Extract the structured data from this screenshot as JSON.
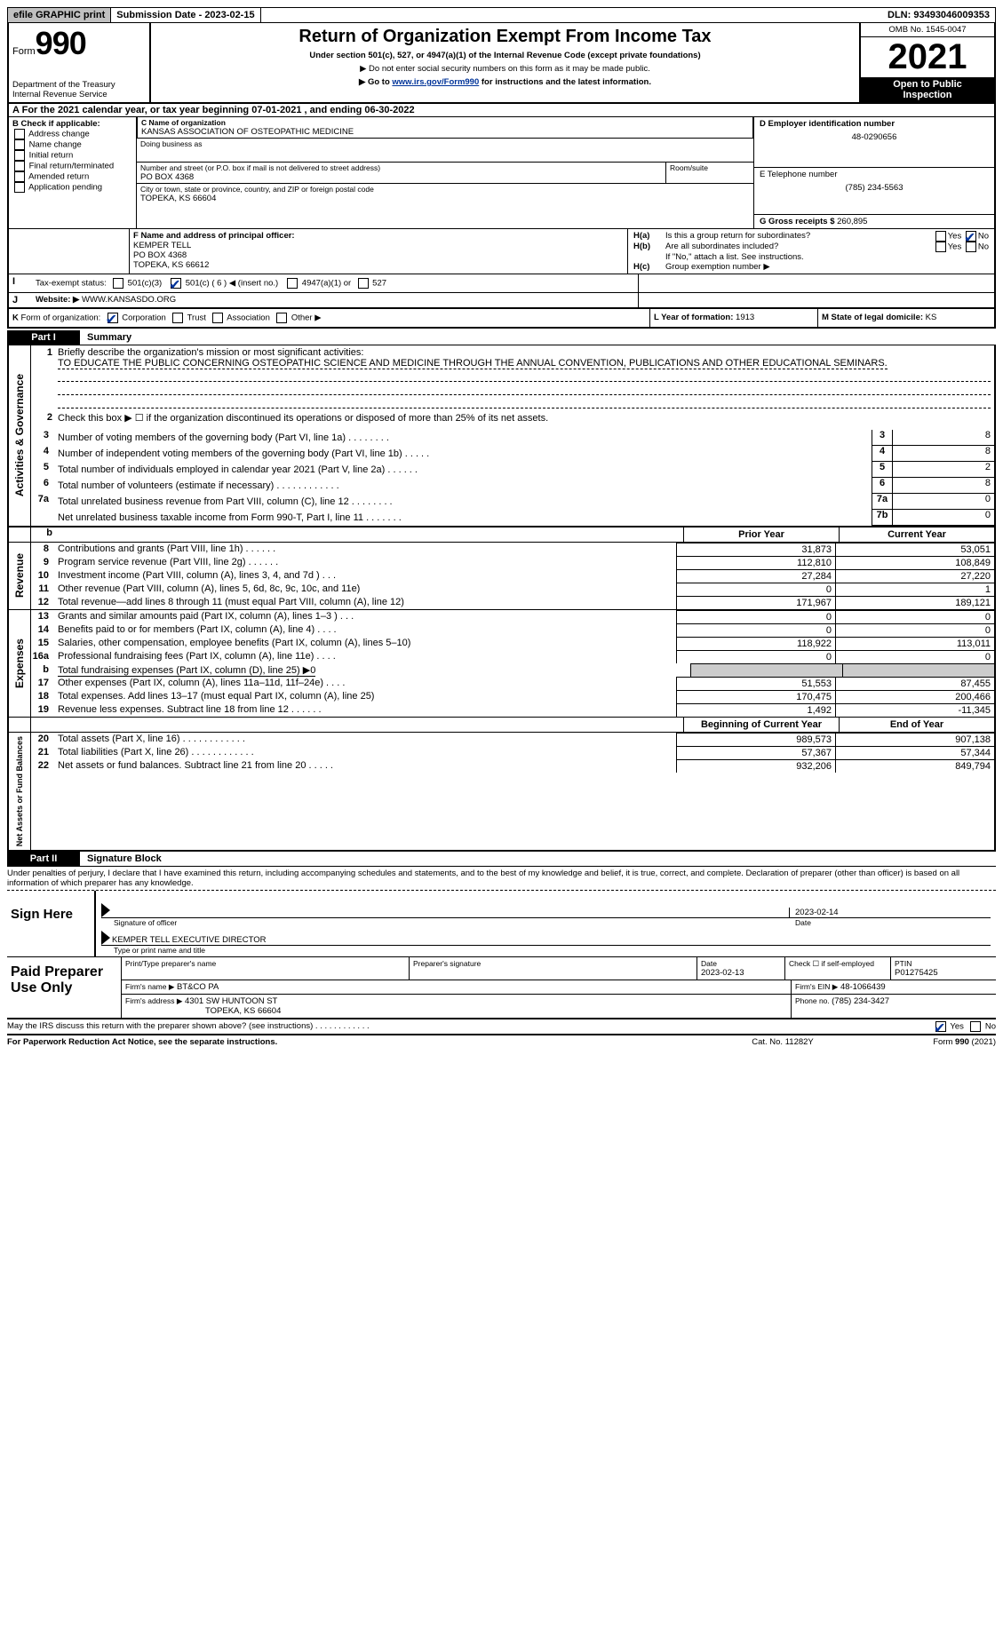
{
  "topbar": {
    "efile_label": "efile GRAPHIC print",
    "submission_label": "Submission Date - 2023-02-15",
    "dln_label": "DLN: 93493046009353"
  },
  "header": {
    "form_label": "Form",
    "form_number": "990",
    "title": "Return of Organization Exempt From Income Tax",
    "subtitle": "Under section 501(c), 527, or 4947(a)(1) of the Internal Revenue Code (except private foundations)",
    "ssn_note": "▶ Do not enter social security numbers on this form as it may be made public.",
    "goto_prefix": "▶ Go to ",
    "goto_link": "www.irs.gov/Form990",
    "goto_suffix": " for instructions and the latest information.",
    "dept": "Department of the Treasury",
    "irs": "Internal Revenue Service",
    "omb": "OMB No. 1545-0047",
    "year": "2021",
    "open_inspection_l1": "Open to Public",
    "open_inspection_l2": "Inspection"
  },
  "section_a": {
    "line": "For the 2021 calendar year, or tax year beginning 07-01-2021    , and ending 06-30-2022",
    "prefix": "A"
  },
  "section_b": {
    "title": "B Check if applicable:",
    "items": [
      "Address change",
      "Name change",
      "Initial return",
      "Final return/terminated",
      "Amended return",
      "Application pending"
    ]
  },
  "section_c": {
    "name_label": "C Name of organization",
    "name": "KANSAS ASSOCIATION OF OSTEOPATHIC MEDICINE",
    "dba_label": "Doing business as",
    "street_label": "Number and street (or P.O. box if mail is not delivered to street address)",
    "room_label": "Room/suite",
    "street": "PO BOX 4368",
    "city_label": "City or town, state or province, country, and ZIP or foreign postal code",
    "city": "TOPEKA, KS  66604"
  },
  "section_d": {
    "label": "D Employer identification number",
    "value": "48-0290656"
  },
  "section_e": {
    "label": "E Telephone number",
    "value": "(785) 234-5563"
  },
  "section_g": {
    "label": "G Gross receipts $ ",
    "value": "260,895"
  },
  "section_f": {
    "label": "F  Name and address of principal officer:",
    "name": "KEMPER TELL",
    "street": "PO BOX 4368",
    "city": "TOPEKA, KS  66612"
  },
  "section_h": {
    "ha_label": "Is this a group return for subordinates?",
    "ha_prefix": "H(a)",
    "hb_label": "Are all subordinates included?",
    "hb_prefix": "H(b)",
    "hb_note": "If \"No,\" attach a list. See instructions.",
    "hc_prefix": "H(c)",
    "hc_label": "Group exemption number ▶",
    "yes": "Yes",
    "no": "No"
  },
  "section_i": {
    "prefix": "I",
    "label": "Tax-exempt status:",
    "opt1": "501(c)(3)",
    "opt2": "501(c) ( 6 ) ◀ (insert no.)",
    "opt3": "4947(a)(1) or",
    "opt4": "527"
  },
  "section_j": {
    "prefix": "J",
    "label": "Website: ▶",
    "value": "WWW.KANSASDO.ORG"
  },
  "section_k": {
    "prefix": "K",
    "label": "Form of organization:",
    "opts": [
      "Corporation",
      "Trust",
      "Association",
      "Other ▶"
    ]
  },
  "section_l": {
    "label": "L Year of formation: ",
    "value": "1913"
  },
  "section_m": {
    "label": "M State of legal domicile: ",
    "value": "KS"
  },
  "part1": {
    "label": "Part I",
    "title": "Summary",
    "vert_activities": "Activities & Governance",
    "vert_revenue": "Revenue",
    "vert_expenses": "Expenses",
    "vert_netassets": "Net Assets or Fund Balances",
    "line1_label": "Briefly describe the organization's mission or most significant activities:",
    "line1_value": "TO EDUCATE THE PUBLIC CONCERNING OSTEOPATHIC SCIENCE AND MEDICINE THROUGH THE ANNUAL CONVENTION, PUBLICATIONS AND OTHER EDUCATIONAL SEMINARS.",
    "line2_label": "Check this box ▶ ☐ if the organization discontinued its operations or disposed of more than 25% of its net assets.",
    "rows_a": [
      {
        "n": "3",
        "label": "Number of voting members of the governing body (Part VI, line 1a)   .    .    .    .    .    .    .    .",
        "box": "3",
        "val": "8"
      },
      {
        "n": "4",
        "label": "Number of independent voting members of the governing body (Part VI, line 1b)   .    .    .    .    .",
        "box": "4",
        "val": "8"
      },
      {
        "n": "5",
        "label": "Total number of individuals employed in calendar year 2021 (Part V, line 2a)   .    .    .    .    .    .",
        "box": "5",
        "val": "2"
      },
      {
        "n": "6",
        "label": "Total number of volunteers (estimate if necessary)   .    .    .    .    .    .    .    .    .    .    .    .",
        "box": "6",
        "val": "8"
      },
      {
        "n": "7a",
        "label": "Total unrelated business revenue from Part VIII, column (C), line 12   .    .    .    .    .    .    .    .",
        "box": "7a",
        "val": "0"
      },
      {
        "n": "",
        "label": "Net unrelated business taxable income from Form 990-T, Part I, line 11   .    .    .    .    .    .    .",
        "box": "7b",
        "val": "0"
      }
    ],
    "prior_year": "Prior Year",
    "current_year": "Current Year",
    "beg_year": "Beginning of Current Year",
    "end_year": "End of Year",
    "rows_rev": [
      {
        "n": "8",
        "label": "Contributions and grants (Part VIII, line 1h)   .    .    .    .    .    .",
        "py": "31,873",
        "cy": "53,051"
      },
      {
        "n": "9",
        "label": "Program service revenue (Part VIII, line 2g)   .    .    .    .    .    .",
        "py": "112,810",
        "cy": "108,849"
      },
      {
        "n": "10",
        "label": "Investment income (Part VIII, column (A), lines 3, 4, and 7d )   .    .    .",
        "py": "27,284",
        "cy": "27,220"
      },
      {
        "n": "11",
        "label": "Other revenue (Part VIII, column (A), lines 5, 6d, 8c, 9c, 10c, and 11e)",
        "py": "0",
        "cy": "1"
      },
      {
        "n": "12",
        "label": "Total revenue—add lines 8 through 11 (must equal Part VIII, column (A), line 12)",
        "py": "171,967",
        "cy": "189,121"
      }
    ],
    "rows_exp": [
      {
        "n": "13",
        "label": "Grants and similar amounts paid (Part IX, column (A), lines 1–3 )   .    .    .",
        "py": "0",
        "cy": "0"
      },
      {
        "n": "14",
        "label": "Benefits paid to or for members (Part IX, column (A), line 4)   .    .    .    .",
        "py": "0",
        "cy": "0"
      },
      {
        "n": "15",
        "label": "Salaries, other compensation, employee benefits (Part IX, column (A), lines 5–10)",
        "py": "118,922",
        "cy": "113,011"
      },
      {
        "n": "16a",
        "label": "Professional fundraising fees (Part IX, column (A), line 11e)   .    .    .    .",
        "py": "0",
        "cy": "0"
      },
      {
        "n": "b",
        "label": "Total fundraising expenses (Part IX, column (D), line 25) ▶0",
        "py": "GRAY",
        "cy": "GRAY",
        "u": true
      },
      {
        "n": "17",
        "label": "Other expenses (Part IX, column (A), lines 11a–11d, 11f–24e)   .    .    .    .",
        "py": "51,553",
        "cy": "87,455"
      },
      {
        "n": "18",
        "label": "Total expenses. Add lines 13–17 (must equal Part IX, column (A), line 25)",
        "py": "170,475",
        "cy": "200,466"
      },
      {
        "n": "19",
        "label": "Revenue less expenses. Subtract line 18 from line 12   .    .    .    .    .    .",
        "py": "1,492",
        "cy": "-11,345"
      }
    ],
    "rows_net": [
      {
        "n": "20",
        "label": "Total assets (Part X, line 16)   .    .    .    .    .    .    .    .    .    .    .    .",
        "py": "989,573",
        "cy": "907,138"
      },
      {
        "n": "21",
        "label": "Total liabilities (Part X, line 26)   .    .    .    .    .    .    .    .    .    .    .    .",
        "py": "57,367",
        "cy": "57,344"
      },
      {
        "n": "22",
        "label": "Net assets or fund balances. Subtract line 21 from line 20   .    .    .    .    .",
        "py": "932,206",
        "cy": "849,794"
      }
    ]
  },
  "part2": {
    "label": "Part II",
    "title": "Signature Block",
    "perjury": "Under penalties of perjury, I declare that I have examined this return, including accompanying schedules and statements, and to the best of my knowledge and belief, it is true, correct, and complete. Declaration of preparer (other than officer) is based on all information of which preparer has any knowledge.",
    "sign_here": "Sign Here",
    "sig_officer": "Signature of officer",
    "date": "Date",
    "sig_date": "2023-02-14",
    "name_title": "KEMPER TELL  EXECUTIVE DIRECTOR",
    "name_title_label": "Type or print name and title",
    "paid": "Paid Preparer Use Only",
    "print_name_label": "Print/Type preparer's name",
    "prep_sig_label": "Preparer's signature",
    "prep_date_label": "Date",
    "prep_date": "2023-02-13",
    "check_if_label": "Check ☐ if self-employed",
    "ptin_label": "PTIN",
    "ptin": "P01275425",
    "firm_name_label": "Firm's name    ▶",
    "firm_name": "BT&CO PA",
    "firm_ein_label": "Firm's EIN ▶",
    "firm_ein": "48-1066439",
    "firm_addr_label": "Firm's address ▶",
    "firm_addr1": "4301 SW HUNTOON ST",
    "firm_addr2": "TOPEKA, KS  66604",
    "phone_label": "Phone no. ",
    "phone": "(785) 234-3427",
    "may_discuss": "May the IRS discuss this return with the preparer shown above? (see instructions)   .    .    .    .    .    .    .    .    .    .    .    .",
    "yes": "Yes",
    "no": "No"
  },
  "footer": {
    "paperwork": "For Paperwork Reduction Act Notice, see the separate instructions.",
    "cat": "Cat. No. 11282Y",
    "form": "Form 990 (2021)"
  }
}
